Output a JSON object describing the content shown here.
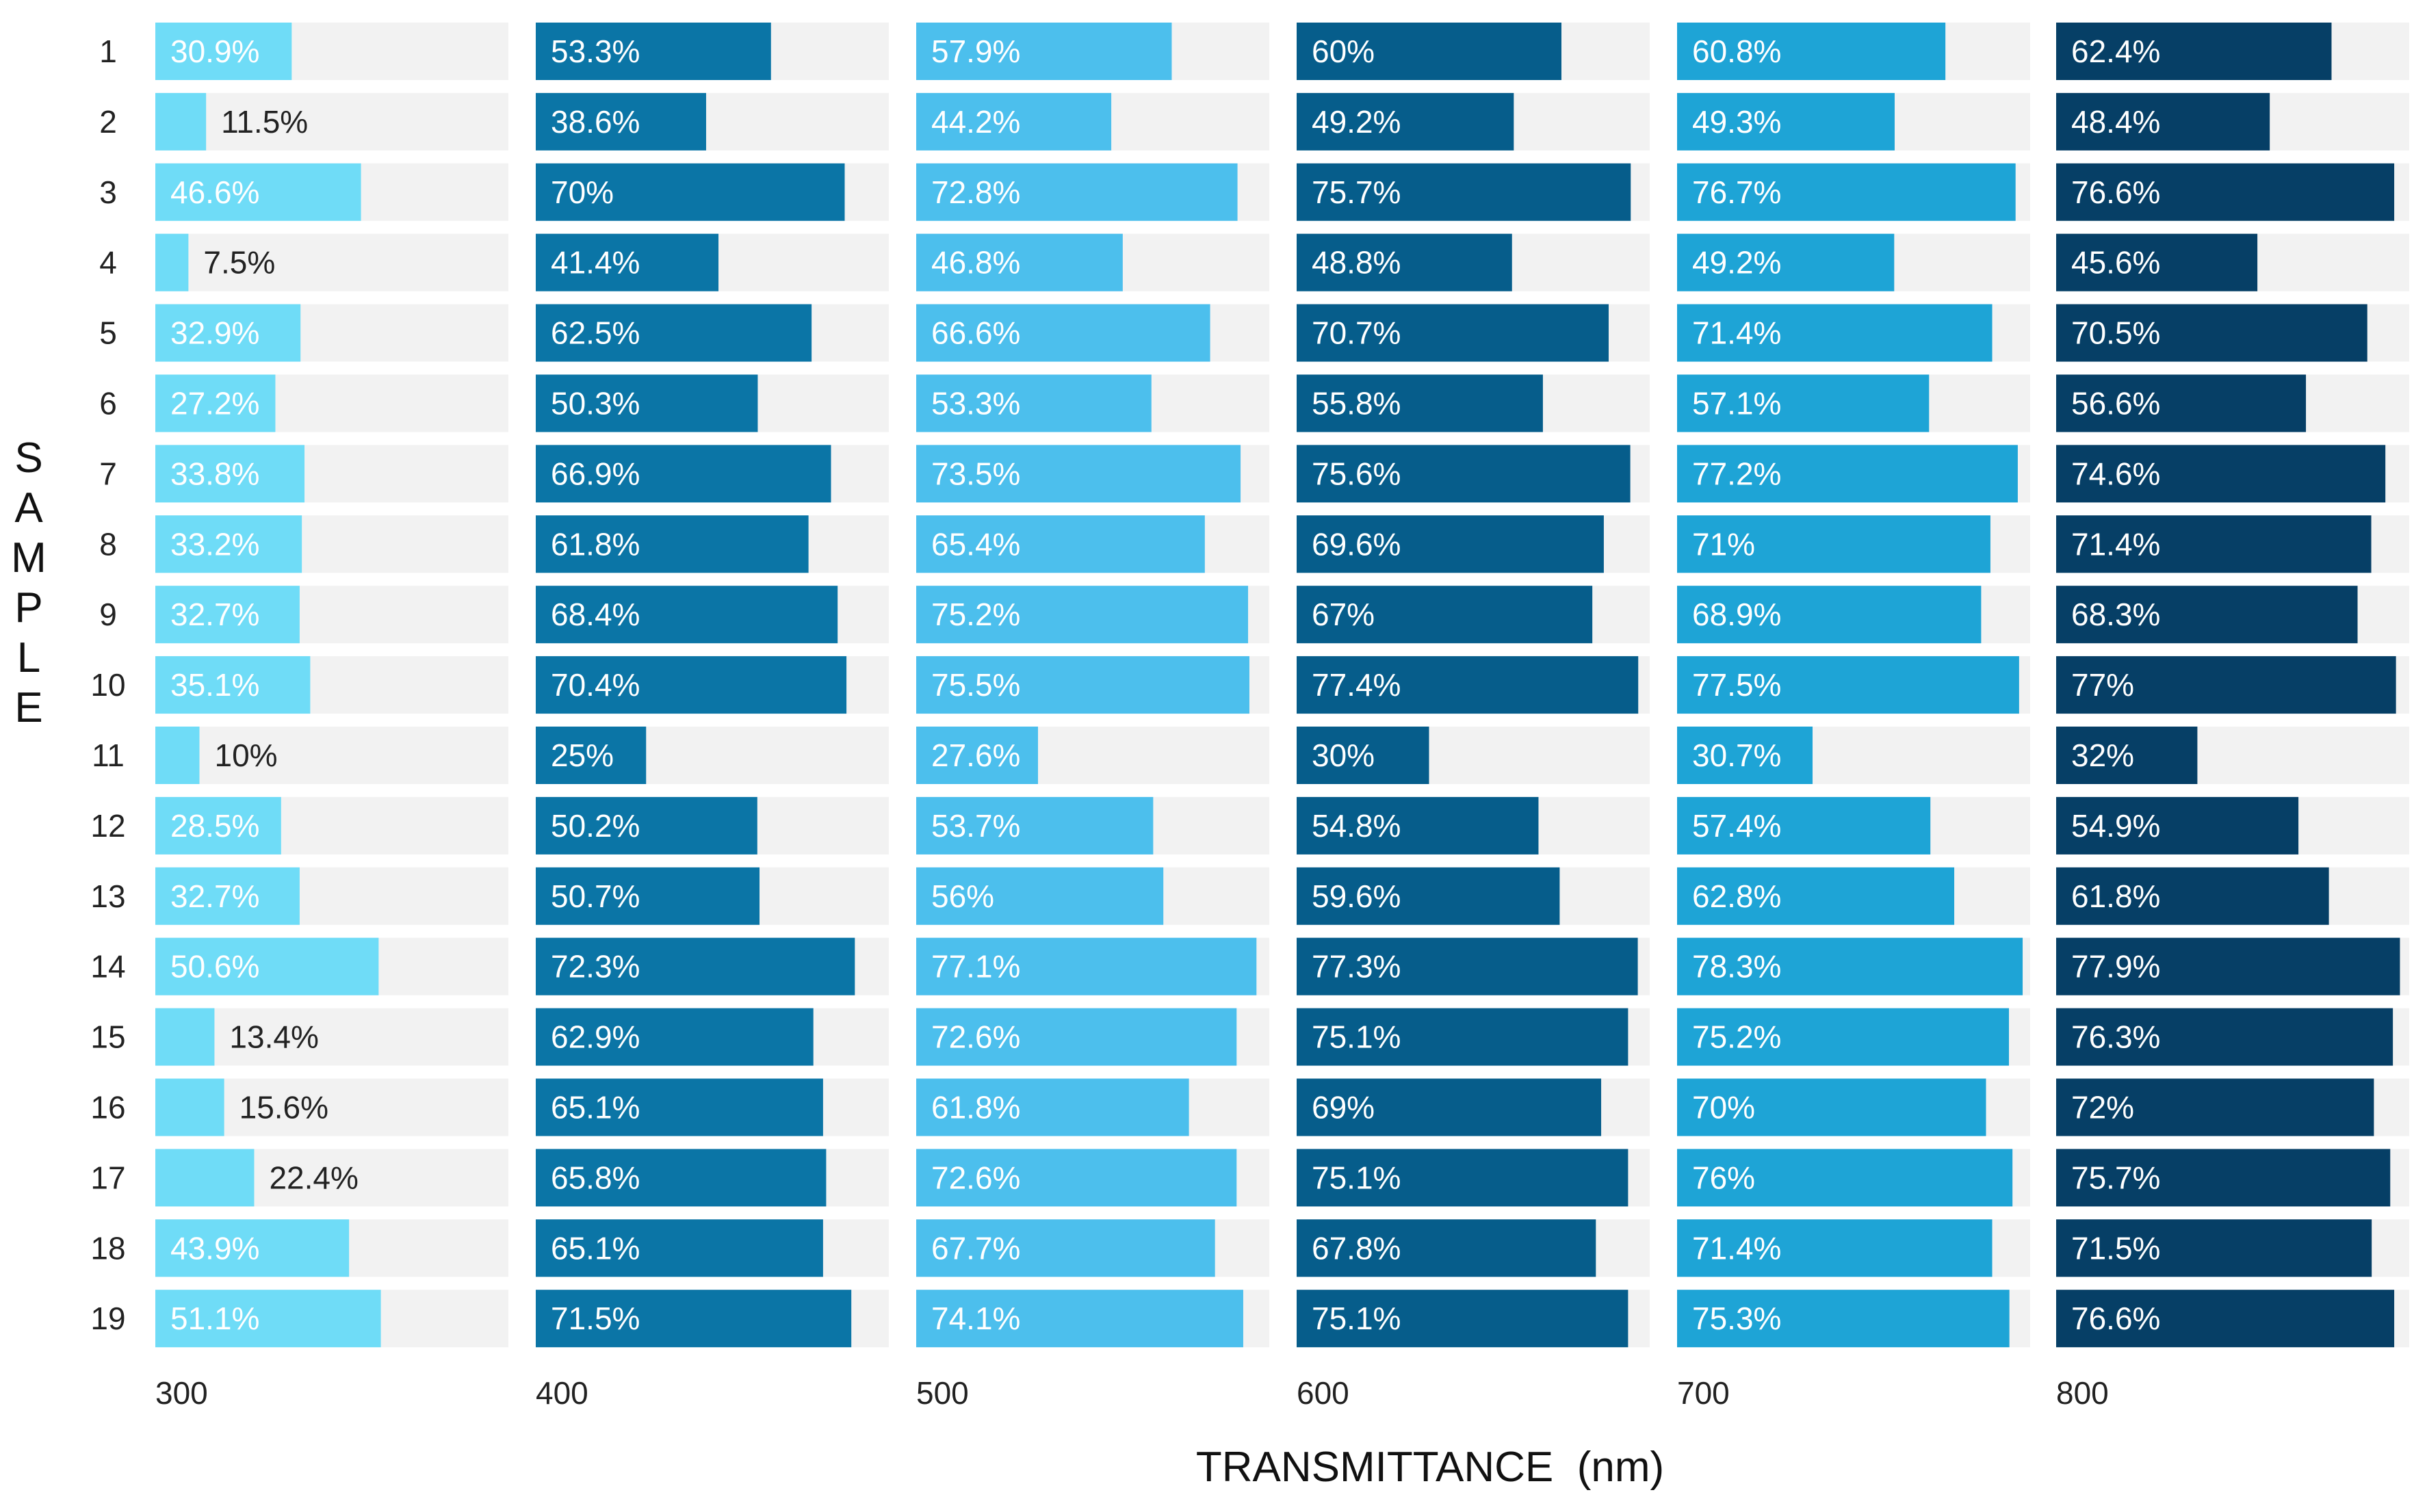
{
  "chart_data": {
    "type": "bar",
    "orientation": "horizontal",
    "layout": "small-multiples",
    "xlabel": "TRANSMITTANCE  (nm)",
    "ylabel": "SAMPLE",
    "xlim": [
      0,
      80
    ],
    "value_suffix": "%",
    "categories": [
      "1",
      "2",
      "3",
      "4",
      "5",
      "6",
      "7",
      "8",
      "9",
      "10",
      "11",
      "12",
      "13",
      "14",
      "15",
      "16",
      "17",
      "18",
      "19"
    ],
    "series": [
      {
        "name": "300",
        "color": "#6fdcf7",
        "values": [
          30.9,
          11.5,
          46.6,
          7.5,
          32.9,
          27.2,
          33.8,
          33.2,
          32.7,
          35.1,
          10,
          28.5,
          32.7,
          50.6,
          13.4,
          15.6,
          22.4,
          43.9,
          51.1
        ]
      },
      {
        "name": "400",
        "color": "#0b75a6",
        "values": [
          53.3,
          38.6,
          70,
          41.4,
          62.5,
          50.3,
          66.9,
          61.8,
          68.4,
          70.4,
          25,
          50.2,
          50.7,
          72.3,
          62.9,
          65.1,
          65.8,
          65.1,
          71.5
        ]
      },
      {
        "name": "500",
        "color": "#4cbfed",
        "values": [
          57.9,
          44.2,
          72.8,
          46.8,
          66.6,
          53.3,
          73.5,
          65.4,
          75.2,
          75.5,
          27.6,
          53.7,
          56,
          77.1,
          72.6,
          61.8,
          72.6,
          67.7,
          74.1
        ]
      },
      {
        "name": "600",
        "color": "#065d8b",
        "values": [
          60,
          49.2,
          75.7,
          48.8,
          70.7,
          55.8,
          75.6,
          69.6,
          67,
          77.4,
          30,
          54.8,
          59.6,
          77.3,
          75.1,
          69,
          75.1,
          67.8,
          75.1
        ]
      },
      {
        "name": "700",
        "color": "#1ea4d6",
        "values": [
          60.8,
          49.3,
          76.7,
          49.2,
          71.4,
          57.1,
          77.2,
          71,
          68.9,
          77.5,
          30.7,
          57.4,
          62.8,
          78.3,
          75.2,
          70,
          76,
          71.4,
          75.3
        ]
      },
      {
        "name": "800",
        "color": "#063f66",
        "values": [
          62.4,
          48.4,
          76.6,
          45.6,
          70.5,
          56.6,
          74.6,
          71.4,
          68.3,
          77,
          32,
          54.9,
          61.8,
          77.9,
          76.3,
          72,
          75.7,
          71.5,
          76.6
        ]
      }
    ],
    "grid": false,
    "legend": "none"
  }
}
